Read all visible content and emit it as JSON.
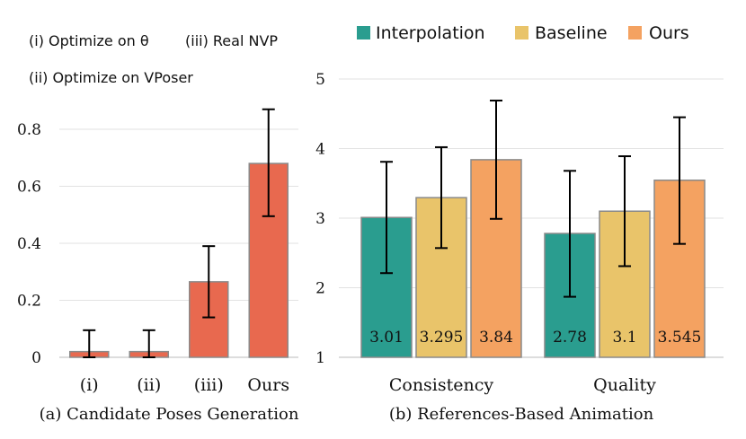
{
  "chart_data": [
    {
      "type": "bar",
      "caption": "(a) Candidate Poses Generation",
      "legend_notes": [
        "(i) Optimize on θ",
        "(iii) Real NVP",
        "(ii) Optimize on VPoser"
      ],
      "categories": [
        "(i)",
        "(ii)",
        "(iii)",
        "Ours"
      ],
      "values": [
        0.02,
        0.02,
        0.265,
        0.68
      ],
      "error_low": [
        0.0,
        0.0,
        0.14,
        0.495
      ],
      "error_high": [
        0.095,
        0.095,
        0.39,
        0.87
      ],
      "yticks": [
        "0",
        "0.2",
        "0.4",
        "0.6",
        "0.8"
      ],
      "ylim": [
        0,
        0.97
      ],
      "bar_color": "#E8694F",
      "grid": true
    },
    {
      "type": "bar",
      "caption": "(b) References-Based Animation",
      "categories": [
        "Consistency",
        "Quality"
      ],
      "series": [
        {
          "name": "Interpolation",
          "color": "#2A9D8F",
          "values": [
            3.01,
            2.78
          ],
          "labels": [
            "3.01",
            "2.78"
          ],
          "error_low": [
            2.21,
            1.87
          ],
          "error_high": [
            3.81,
            3.68
          ]
        },
        {
          "name": "Baseline",
          "color": "#E9C46A",
          "values": [
            3.295,
            3.1
          ],
          "labels": [
            "3.295",
            "3.1"
          ],
          "error_low": [
            2.57,
            2.31
          ],
          "error_high": [
            4.02,
            3.89
          ]
        },
        {
          "name": "Ours",
          "color": "#F4A261",
          "values": [
            3.84,
            3.545
          ],
          "labels": [
            "3.84",
            "3.545"
          ],
          "error_low": [
            2.99,
            2.63
          ],
          "error_high": [
            4.69,
            4.45
          ]
        }
      ],
      "yticks": [
        "1",
        "2",
        "3",
        "4",
        "5"
      ],
      "ylim": [
        1,
        5
      ],
      "legend_position": "top",
      "grid": true
    }
  ]
}
